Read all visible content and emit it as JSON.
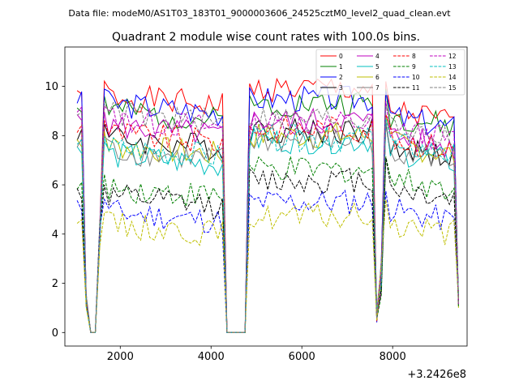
{
  "figure": {
    "suptitle": "Data file: modeM0/AS1T03_183T01_9000003606_24525cztM0_level2_quad_clean.evt",
    "offset_label": "+3.2426e8"
  },
  "chart_data": {
    "type": "line",
    "title": "Quadrant 2 module wise count rates with 100.0s bins.",
    "xlabel": "",
    "ylabel": "",
    "xlim": [
      780,
      9640
    ],
    "ylim": [
      -0.55,
      11.6
    ],
    "xticks": [
      2000,
      4000,
      6000,
      8000
    ],
    "yticks": [
      0,
      2,
      4,
      6,
      8,
      10
    ],
    "grid": false,
    "legend": {
      "placement": "top-right",
      "columns": 4,
      "fontsize": "small"
    },
    "x_offset": 324260000,
    "x": [
      1050,
      1150,
      1250,
      1350,
      1450,
      1550,
      1650,
      1750,
      1850,
      1950,
      2050,
      2150,
      2250,
      2350,
      2450,
      2550,
      2650,
      2750,
      2850,
      2950,
      3050,
      3150,
      3250,
      3350,
      3450,
      3550,
      3650,
      3750,
      3850,
      3950,
      4050,
      4150,
      4250,
      4350,
      4450,
      4550,
      4650,
      4750,
      4850,
      4950,
      5050,
      5150,
      5250,
      5350,
      5450,
      5550,
      5650,
      5750,
      5850,
      5950,
      6050,
      6150,
      6250,
      6350,
      6450,
      6550,
      6650,
      6750,
      6850,
      6950,
      7050,
      7150,
      7250,
      7350,
      7450,
      7550,
      7650,
      7750,
      7850,
      7950,
      8050,
      8150,
      8250,
      8350,
      8450,
      8550,
      8650,
      8750,
      8850,
      8950,
      9050,
      9150,
      9250,
      9350,
      9450
    ],
    "gaps": [
      [
        4340,
        4840
      ]
    ],
    "series": [
      {
        "name": "0",
        "color": "#ff0000",
        "dash": "solid",
        "plateaus": [
          9.6,
          9.9,
          9.0
        ],
        "seed": 1
      },
      {
        "name": "1",
        "color": "#008000",
        "dash": "solid",
        "plateaus": [
          9.0,
          9.3,
          8.8
        ],
        "seed": 2
      },
      {
        "name": "2",
        "color": "#0000ff",
        "dash": "solid",
        "plateaus": [
          9.3,
          9.5,
          8.8
        ],
        "seed": 3
      },
      {
        "name": "3",
        "color": "#000000",
        "dash": "solid",
        "plateaus": [
          7.9,
          8.2,
          7.6
        ],
        "seed": 4
      },
      {
        "name": "4",
        "color": "#bf00bf",
        "dash": "solid",
        "plateaus": [
          8.4,
          8.6,
          8.0
        ],
        "seed": 5
      },
      {
        "name": "5",
        "color": "#00bfbf",
        "dash": "solid",
        "plateaus": [
          7.2,
          7.8,
          7.4
        ],
        "seed": 6
      },
      {
        "name": "6",
        "color": "#bfbf00",
        "dash": "solid",
        "plateaus": [
          7.6,
          8.0,
          7.7
        ],
        "seed": 7
      },
      {
        "name": "7",
        "color": "#808080",
        "dash": "solid",
        "plateaus": [
          7.4,
          7.8,
          7.5
        ],
        "seed": 8
      },
      {
        "name": "8",
        "color": "#ff0000",
        "dash": "dashed",
        "plateaus": [
          8.1,
          8.3,
          7.9
        ],
        "seed": 9
      },
      {
        "name": "9",
        "color": "#008000",
        "dash": "dashed",
        "plateaus": [
          5.9,
          6.6,
          6.3
        ],
        "seed": 10
      },
      {
        "name": "10",
        "color": "#0000ff",
        "dash": "dashed",
        "plateaus": [
          4.9,
          5.3,
          5.0
        ],
        "seed": 11
      },
      {
        "name": "11",
        "color": "#000000",
        "dash": "dashed",
        "plateaus": [
          5.5,
          6.2,
          5.9
        ],
        "seed": 12
      },
      {
        "name": "12",
        "color": "#bf00bf",
        "dash": "dashed",
        "plateaus": [
          8.7,
          8.5,
          8.3
        ],
        "seed": 13
      },
      {
        "name": "13",
        "color": "#00bfbf",
        "dash": "dashed",
        "plateaus": [
          7.5,
          7.9,
          7.7
        ],
        "seed": 14
      },
      {
        "name": "14",
        "color": "#bfbf00",
        "dash": "dashed",
        "plateaus": [
          4.4,
          4.7,
          4.5
        ],
        "seed": 15
      },
      {
        "name": "15",
        "color": "#808080",
        "dash": "dashed",
        "plateaus": [
          8.9,
          8.7,
          8.4
        ],
        "seed": 16
      }
    ]
  }
}
